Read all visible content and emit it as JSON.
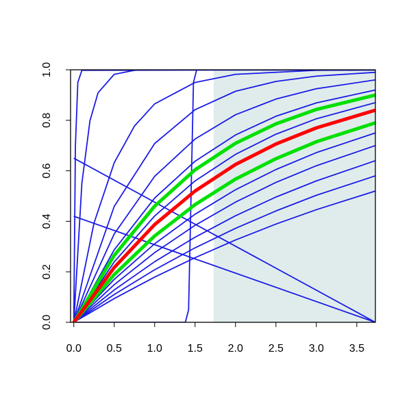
{
  "chart_data": {
    "type": "line",
    "xlim": [
      -0.04,
      3.73
    ],
    "ylim": [
      0,
      1
    ],
    "xticks": [
      {
        "value": 0,
        "label": "0.0"
      },
      {
        "value": 0.5,
        "label": "0.5"
      },
      {
        "value": 1,
        "label": "1.0"
      },
      {
        "value": 1.5,
        "label": "1.5"
      },
      {
        "value": 2,
        "label": "2.0"
      },
      {
        "value": 2.5,
        "label": "2.5"
      },
      {
        "value": 3,
        "label": "3.0"
      },
      {
        "value": 3.5,
        "label": "3.5"
      }
    ],
    "yticks": [
      {
        "value": 0,
        "label": "0.0"
      },
      {
        "value": 0.2,
        "label": "0.2"
      },
      {
        "value": 0.4,
        "label": "0.4"
      },
      {
        "value": 0.6,
        "label": "0.6"
      },
      {
        "value": 0.8,
        "label": "0.8"
      },
      {
        "value": 1,
        "label": "1.0"
      }
    ],
    "shade_x": [
      1.73,
      3.73
    ],
    "shade_color": "#e0ecec",
    "series": [
      {
        "color": "#1a1ae6",
        "x": [
          0,
          0.5,
          1,
          1.5,
          2,
          2.5,
          3,
          3.73
        ],
        "values": [
          0,
          0.094,
          0.179,
          0.256,
          0.326,
          0.389,
          0.446,
          0.52
        ]
      },
      {
        "color": "#1a1ae6",
        "x": [
          0,
          0.5,
          1,
          1.5,
          2,
          2.5,
          3,
          3.73
        ],
        "values": [
          0,
          0.11,
          0.208,
          0.295,
          0.372,
          0.441,
          0.503,
          0.58
        ]
      },
      {
        "color": "#1a1ae6",
        "x": [
          0,
          0.5,
          1,
          1.5,
          2,
          2.5,
          3,
          3.73
        ],
        "values": [
          0,
          0.128,
          0.24,
          0.337,
          0.422,
          0.496,
          0.56,
          0.64
        ]
      },
      {
        "color": "#1a1ae6",
        "x": [
          0,
          0.5,
          1,
          1.5,
          2,
          2.5,
          3,
          3.73
        ],
        "values": [
          0,
          0.149,
          0.276,
          0.384,
          0.476,
          0.554,
          0.62,
          0.7
        ]
      },
      {
        "color": "#1a1ae6",
        "x": [
          0,
          0.5,
          1,
          1.5,
          2,
          2.5,
          3,
          3.73
        ],
        "values": [
          0,
          0.17,
          0.311,
          0.428,
          0.525,
          0.605,
          0.672,
          0.75
        ]
      },
      {
        "color": "#1a1ae6",
        "x": [
          0,
          0.5,
          1,
          1.5,
          2,
          2.5,
          3,
          3.73
        ],
        "values": [
          0,
          0.239,
          0.421,
          0.56,
          0.665,
          0.745,
          0.806,
          0.87
        ]
      },
      {
        "color": "#1a1ae6",
        "x": [
          0,
          0.5,
          1,
          1.5,
          2,
          2.5,
          3,
          3.73
        ],
        "values": [
          0,
          0.287,
          0.492,
          0.638,
          0.742,
          0.816,
          0.869,
          0.92
        ]
      },
      {
        "color": "#1a1ae6",
        "x": [
          0,
          0.5,
          1,
          1.5,
          2,
          2.5,
          3,
          3.73
        ],
        "values": [
          0,
          0.35,
          0.578,
          0.726,
          0.822,
          0.884,
          0.925,
          0.96
        ]
      },
      {
        "color": "#1a1ae6",
        "x": [
          0,
          0.5,
          1,
          1.5,
          2,
          2.5,
          3,
          3.73
        ],
        "values": [
          0,
          0.459,
          0.708,
          0.842,
          0.915,
          0.954,
          0.975,
          0.99
        ]
      },
      {
        "color": "#1a1ae6",
        "x": [
          0,
          0.25,
          0.5,
          0.75,
          1,
          1.5,
          2,
          3,
          3.73
        ],
        "values": [
          0,
          0.393,
          0.632,
          0.777,
          0.865,
          0.95,
          0.982,
          0.998,
          0.999
        ]
      },
      {
        "color": "#1a1ae6",
        "x": [
          0,
          0.1,
          0.2,
          0.3,
          0.5,
          0.75,
          1,
          3.73
        ],
        "values": [
          0,
          0.551,
          0.798,
          0.909,
          0.982,
          0.998,
          1,
          1
        ]
      },
      {
        "color": "#1a1ae6",
        "x": [
          0,
          0.02,
          0.05,
          0.1,
          3.73
        ],
        "values": [
          0,
          0.699,
          0.95,
          0.998,
          1
        ]
      },
      {
        "color": "#1a1ae6",
        "x": [
          0,
          1.38,
          1.42,
          1.45,
          1.48,
          1.52,
          3.73
        ],
        "values": [
          0,
          0,
          0.05,
          0.5,
          0.95,
          1,
          1
        ]
      },
      {
        "color": "#1a1ae6",
        "x": [
          0,
          3.73
        ],
        "values": [
          0.65,
          0
        ]
      },
      {
        "color": "#1a1ae6",
        "x": [
          0,
          3.73
        ],
        "values": [
          0.42,
          0
        ]
      },
      {
        "color": "#00e000",
        "x": [
          0,
          0.5,
          1,
          1.5,
          2,
          2.5,
          3,
          3.73
        ],
        "values": [
          0,
          0.189,
          0.342,
          0.466,
          0.567,
          0.648,
          0.715,
          0.79
        ]
      },
      {
        "color": "#00e000",
        "x": [
          0,
          0.5,
          1,
          1.5,
          2,
          2.5,
          3,
          3.73
        ],
        "values": [
          0,
          0.265,
          0.46,
          0.604,
          0.709,
          0.786,
          0.843,
          0.9
        ]
      },
      {
        "color": "#ff0000",
        "x": [
          0,
          0.5,
          1,
          1.5,
          2,
          2.5,
          3,
          3.73
        ],
        "values": [
          0,
          0.217,
          0.387,
          0.52,
          0.625,
          0.706,
          0.77,
          0.84
        ]
      }
    ]
  }
}
